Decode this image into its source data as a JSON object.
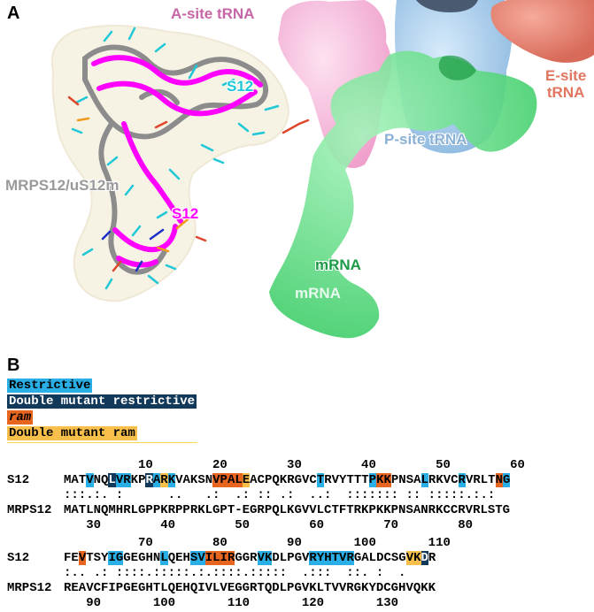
{
  "panel_a": {
    "letter": "A",
    "labels": {
      "a_site_trna": "A-site tRNA",
      "s12_cyan": "S12",
      "e_site_trna_line1": "E-site",
      "e_site_trna_line2": "tRNA",
      "p_site_trna": "P-site tRNA",
      "mrps12": "MRPS12/uS12m",
      "s12_magenta": "S12",
      "mrna_upper": "mRNA",
      "mrna_lower": "mRNA"
    },
    "colors": {
      "a_site": "#f4b6d8",
      "e_site": "#e98475",
      "p_site": "#a9cfee",
      "mrna": "#4fe07a",
      "s12": "#ff00ff",
      "mrps12": "#8c8c8c",
      "cyan_sticks": "#1ec8d6"
    }
  },
  "panel_b": {
    "letter": "B",
    "legend": [
      {
        "label": "Restrictive",
        "style": "l"
      },
      {
        "label": "Double mutant restrictive",
        "style": "d"
      },
      {
        "label": "ram",
        "style": "r"
      },
      {
        "label": "Double mutant ram",
        "style": "y"
      }
    ],
    "blocks": [
      {
        "top_numbers": "          10        20        30        40        50        60",
        "s12_name": "S12",
        "s12_seq": "MATVNQLVRKPRARKVAKSNVPALEACPQKRGVCTRVYTTTPKKPNSALRKVCRVRLTNG",
        "match_line": ":::.:. :      ..   .:  .: :: .:  ..:  ::::::: :: :::::.:.:",
        "mrps_name": "MRPS12",
        "mrps_seq": "MATLNQMHRLGPPKRPPRKLGPT-EGRPQLKGVVLCTFTRKPKKPNSANRKCCRVRLSTG",
        "bottom_numbers": "   30        40        50        60        70        80"
      },
      {
        "top_numbers": "          70        80        90       100       110",
        "s12_name": "S12",
        "s12_seq": "FEVTSYIGGEGHNLQEHSVILIRGGRVKDLPGVRYHTVRGALDCSGVKDR",
        "match_line": ":.. .: ::::.:::::.:.::::.:::::  .:::  ::. :  .",
        "mrps_name": "MRPS12",
        "mrps_seq": "REAVCFIPGEGHTLQEHQIVLVEGGRTQDLPGVKLTVVRGKYDCGHVQKK",
        "bottom_numbers": "   90       100       110       120       130"
      }
    ],
    "highlights": {
      "block1": [
        {
          "pos": 3,
          "style": "l"
        },
        {
          "pos": 6,
          "style": "d"
        },
        {
          "pos": 7,
          "style": "l"
        },
        {
          "pos": 8,
          "style": "l"
        },
        {
          "pos": 11,
          "style": "d"
        },
        {
          "pos": 12,
          "style": "l"
        },
        {
          "pos": 13,
          "style": "y"
        },
        {
          "pos": 14,
          "style": "l"
        },
        {
          "pos": 20,
          "style": "r"
        },
        {
          "pos": 21,
          "style": "r"
        },
        {
          "pos": 22,
          "style": "r"
        },
        {
          "pos": 23,
          "style": "r"
        },
        {
          "pos": 24,
          "style": "y"
        },
        {
          "pos": 34,
          "style": "l"
        },
        {
          "pos": 41,
          "style": "l"
        },
        {
          "pos": 42,
          "style": "r"
        },
        {
          "pos": 43,
          "style": "r"
        },
        {
          "pos": 48,
          "style": "l"
        },
        {
          "pos": 53,
          "style": "l"
        },
        {
          "pos": 58,
          "style": "r"
        },
        {
          "pos": 59,
          "style": "l"
        }
      ],
      "block2": [
        {
          "pos": 2,
          "style": "r"
        },
        {
          "pos": 6,
          "style": "l"
        },
        {
          "pos": 7,
          "style": "l"
        },
        {
          "pos": 13,
          "style": "l"
        },
        {
          "pos": 17,
          "style": "l"
        },
        {
          "pos": 18,
          "style": "l"
        },
        {
          "pos": 19,
          "style": "r"
        },
        {
          "pos": 20,
          "style": "r"
        },
        {
          "pos": 21,
          "style": "r"
        },
        {
          "pos": 22,
          "style": "r"
        },
        {
          "pos": 26,
          "style": "l"
        },
        {
          "pos": 27,
          "style": "l"
        },
        {
          "pos": 33,
          "style": "l"
        },
        {
          "pos": 34,
          "style": "l"
        },
        {
          "pos": 35,
          "style": "l"
        },
        {
          "pos": 36,
          "style": "l"
        },
        {
          "pos": 37,
          "style": "l"
        },
        {
          "pos": 38,
          "style": "l"
        },
        {
          "pos": 46,
          "style": "y"
        },
        {
          "pos": 47,
          "style": "y"
        },
        {
          "pos": 48,
          "style": "d"
        }
      ]
    }
  }
}
